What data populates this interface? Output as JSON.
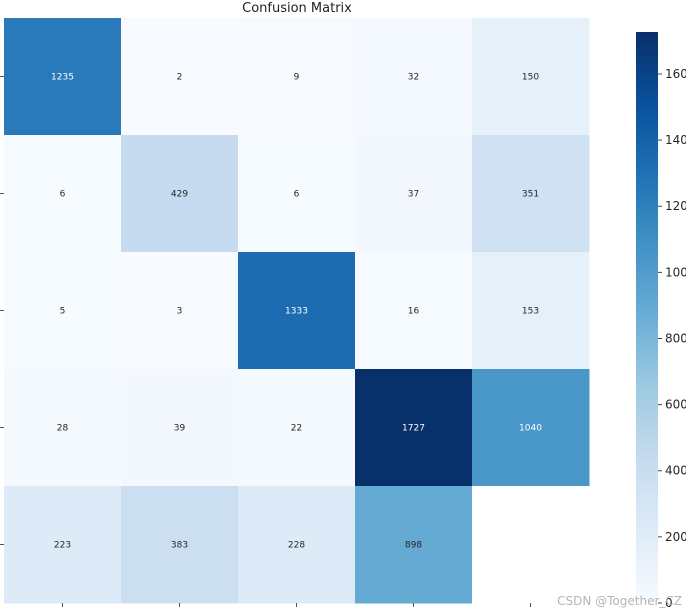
{
  "chart_data": {
    "type": "heatmap",
    "title": "Confusion Matrix",
    "rows": 5,
    "cols": 5,
    "values": [
      [
        1235,
        2,
        9,
        32,
        150
      ],
      [
        6,
        429,
        6,
        37,
        351
      ],
      [
        5,
        3,
        1333,
        16,
        153
      ],
      [
        28,
        39,
        22,
        1727,
        1040
      ],
      [
        223,
        383,
        228,
        898,
        null
      ]
    ],
    "colorbar": {
      "min": 0,
      "max": 1727,
      "ticks": [
        0,
        200,
        400,
        600,
        800,
        1000,
        1200,
        1400,
        1600
      ],
      "tick_labels": [
        "0",
        "200",
        "400",
        "600",
        "800",
        "1000",
        "1200",
        "1400",
        "1600"
      ],
      "colormap": "Blues"
    }
  },
  "watermark": "CSDN @Together_CZ"
}
